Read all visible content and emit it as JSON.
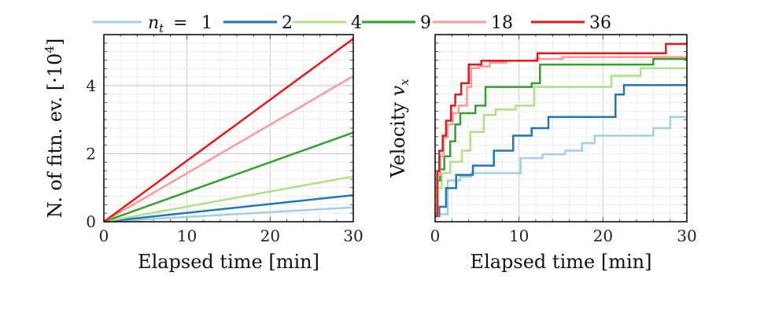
{
  "legend": {
    "prefix": "n",
    "subscript": "t",
    "equals": "=",
    "entries": [
      {
        "label": "1",
        "color": "#a6cee3"
      },
      {
        "label": "2",
        "color": "#1f78b4"
      },
      {
        "label": "4",
        "color": "#b2df8a"
      },
      {
        "label": "9",
        "color": "#33a02c"
      },
      {
        "label": "18",
        "color": "#fb9a99"
      },
      {
        "label": "36",
        "color": "#e31a1c"
      }
    ]
  },
  "chart_data": [
    {
      "type": "line",
      "title": "",
      "xlabel": "Elapsed time [min]",
      "ylabel_text": "N. of fitn. ev. [·10",
      "ylabel_exp": "4",
      "ylabel_close": "]",
      "xlim": [
        0,
        30
      ],
      "ylim": [
        0,
        5.5
      ],
      "xticks": [
        0,
        10,
        20,
        30
      ],
      "yticks": [
        0,
        2,
        4
      ],
      "grid": true,
      "series": [
        {
          "name": "1",
          "color": "#a6cee3",
          "x": [
            0,
            30
          ],
          "y": [
            0,
            0.42
          ]
        },
        {
          "name": "2",
          "color": "#1f78b4",
          "x": [
            0,
            30
          ],
          "y": [
            0,
            0.78
          ]
        },
        {
          "name": "4",
          "color": "#b2df8a",
          "x": [
            0,
            30
          ],
          "y": [
            0,
            1.33
          ]
        },
        {
          "name": "9",
          "color": "#33a02c",
          "x": [
            0,
            30
          ],
          "y": [
            0,
            2.62
          ]
        },
        {
          "name": "18",
          "color": "#fb9a99",
          "x": [
            0,
            30
          ],
          "y": [
            0,
            4.28
          ]
        },
        {
          "name": "36",
          "color": "#e31a1c",
          "x": [
            0,
            30
          ],
          "y": [
            0,
            5.38
          ]
        }
      ]
    },
    {
      "type": "line",
      "title": "",
      "xlabel": "Elapsed time [min]",
      "ylabel_text": "Velocity ",
      "ylabel_var": "v",
      "ylabel_sub": "x",
      "xlim": [
        0,
        30
      ],
      "ylim": [
        0,
        1
      ],
      "xticks": [
        0,
        10,
        20,
        30
      ],
      "yticks": [],
      "grid": true,
      "step": true,
      "series": [
        {
          "name": "1",
          "color": "#a6cee3",
          "x": [
            0,
            0.3,
            1.5,
            3.0,
            4.3,
            10.2,
            12.8,
            15.5,
            17.5,
            19.0,
            26.0,
            28.0,
            30
          ],
          "y": [
            0.03,
            0.04,
            0.22,
            0.24,
            0.26,
            0.34,
            0.36,
            0.38,
            0.42,
            0.46,
            0.5,
            0.56,
            0.56
          ]
        },
        {
          "name": "2",
          "color": "#1f78b4",
          "x": [
            0,
            0.5,
            1.3,
            2.5,
            4.5,
            7.0,
            9.3,
            11.5,
            13.5,
            21.5,
            22.5,
            30
          ],
          "y": [
            0.03,
            0.08,
            0.18,
            0.25,
            0.3,
            0.38,
            0.46,
            0.5,
            0.56,
            0.68,
            0.73,
            0.73
          ]
        },
        {
          "name": "4",
          "color": "#b2df8a",
          "x": [
            0,
            0.3,
            0.8,
            1.8,
            3.2,
            4.2,
            5.8,
            7.2,
            9.6,
            11.8,
            19.8,
            21.0,
            24.5,
            30
          ],
          "y": [
            0.03,
            0.18,
            0.26,
            0.32,
            0.38,
            0.48,
            0.57,
            0.6,
            0.62,
            0.72,
            0.72,
            0.78,
            0.82,
            0.82
          ]
        },
        {
          "name": "9",
          "color": "#33a02c",
          "x": [
            0,
            0.3,
            0.6,
            1.1,
            1.8,
            2.4,
            3.0,
            4.8,
            6.0,
            9.5,
            11.5,
            12.5,
            16.2,
            23.0,
            26.0,
            30
          ],
          "y": [
            0.03,
            0.22,
            0.28,
            0.35,
            0.43,
            0.52,
            0.58,
            0.62,
            0.72,
            0.72,
            0.74,
            0.84,
            0.84,
            0.84,
            0.87,
            0.87
          ]
        },
        {
          "name": "18",
          "color": "#fb9a99",
          "x": [
            0,
            0.3,
            0.6,
            1.0,
            1.5,
            2.1,
            2.8,
            3.8,
            4.3,
            5.2,
            6.5,
            8.5,
            12.0,
            15.2,
            30
          ],
          "y": [
            0.03,
            0.25,
            0.35,
            0.45,
            0.52,
            0.58,
            0.62,
            0.72,
            0.82,
            0.83,
            0.85,
            0.86,
            0.87,
            0.88,
            0.88
          ]
        },
        {
          "name": "36",
          "color": "#e31a1c",
          "x": [
            0,
            0.25,
            0.5,
            0.9,
            1.3,
            1.9,
            2.4,
            3.1,
            4.0,
            5.5,
            12.2,
            27.5,
            30
          ],
          "y": [
            0.03,
            0.27,
            0.38,
            0.46,
            0.54,
            0.62,
            0.68,
            0.74,
            0.84,
            0.86,
            0.9,
            0.95,
            0.95
          ]
        }
      ]
    }
  ]
}
